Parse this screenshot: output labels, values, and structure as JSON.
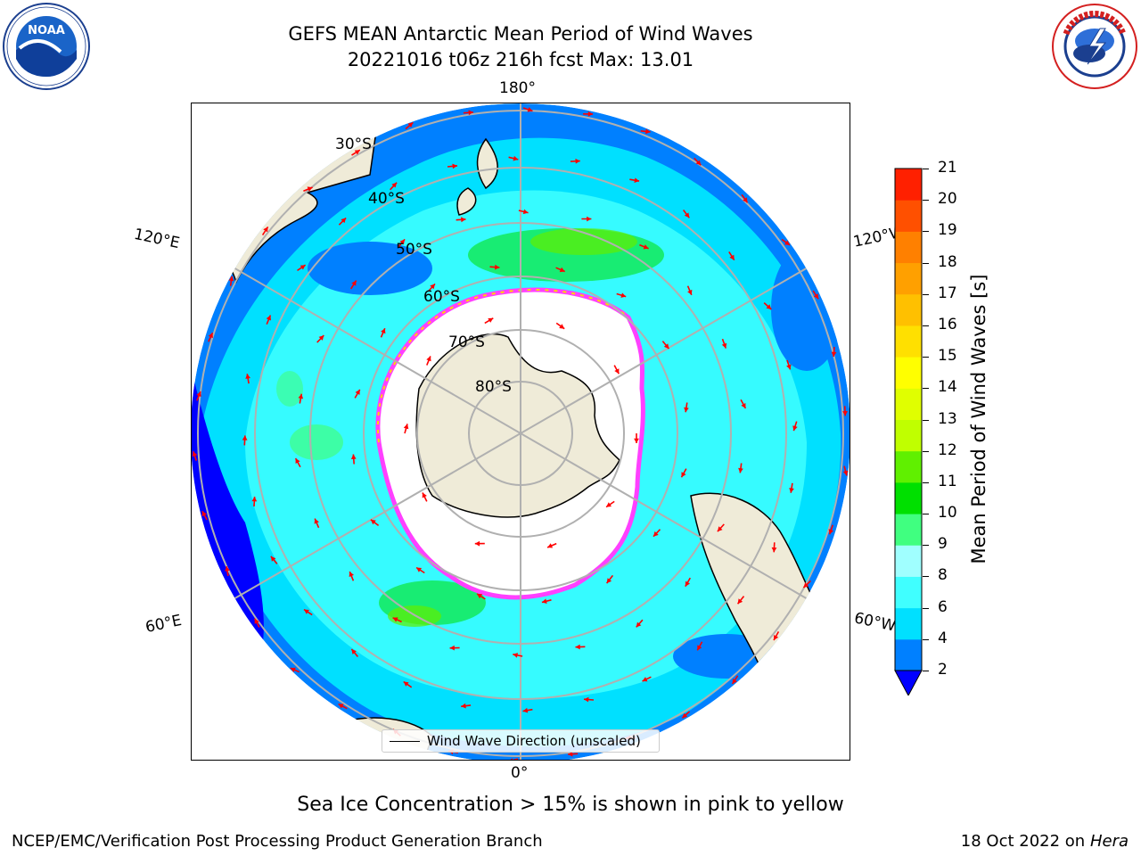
{
  "header": {
    "title_line1": "GEFS MEAN Antarctic Mean Period of Wind Waves",
    "title_line2": "20221016 t06z 216h fcst   Max: 13.01"
  },
  "logos": {
    "left": "noaa-logo",
    "right": "national-weather-service-logo"
  },
  "map": {
    "projection": "south-polar-stereographic",
    "lon_labels": {
      "top": "180°",
      "bottom": "0°",
      "upper_left": "120°E",
      "upper_right": "120°W",
      "lower_left": "60°E",
      "lower_right": "60°W"
    },
    "lat_labels": [
      "30°S",
      "40°S",
      "50°S",
      "60°S",
      "70°S",
      "80°S"
    ],
    "legend": "Wind Wave Direction (unscaled)",
    "colors": {
      "land": "#efebd8",
      "ice_low": "#ff40ff",
      "ice_high": "#ffd700",
      "arrow": "#ff0000",
      "grid": "#b0b0b0"
    }
  },
  "colorbar": {
    "label": "Mean Period of Wind Waves [s]",
    "ticks": [
      "2",
      "4",
      "6",
      "8",
      "9",
      "10",
      "11",
      "12",
      "13",
      "14",
      "15",
      "16",
      "17",
      "18",
      "19",
      "20",
      "21"
    ],
    "colors": [
      "#0080ff",
      "#00e0ff",
      "#40ffff",
      "#a0ffff",
      "#40ff80",
      "#00e000",
      "#60f000",
      "#c0ff00",
      "#e0ff00",
      "#ffff00",
      "#ffe000",
      "#ffc000",
      "#ffa000",
      "#ff8000",
      "#ff5000",
      "#ff2000",
      "#ff0000"
    ],
    "extend_min_color": "#0000ff"
  },
  "subtitle": "Sea Ice Concentration > 15% is shown in pink to yellow",
  "footer": {
    "left": "NCEP/EMC/Verification Post Processing Product Generation Branch",
    "right_date": "18 Oct 2022 on",
    "right_machine": "Hera"
  }
}
